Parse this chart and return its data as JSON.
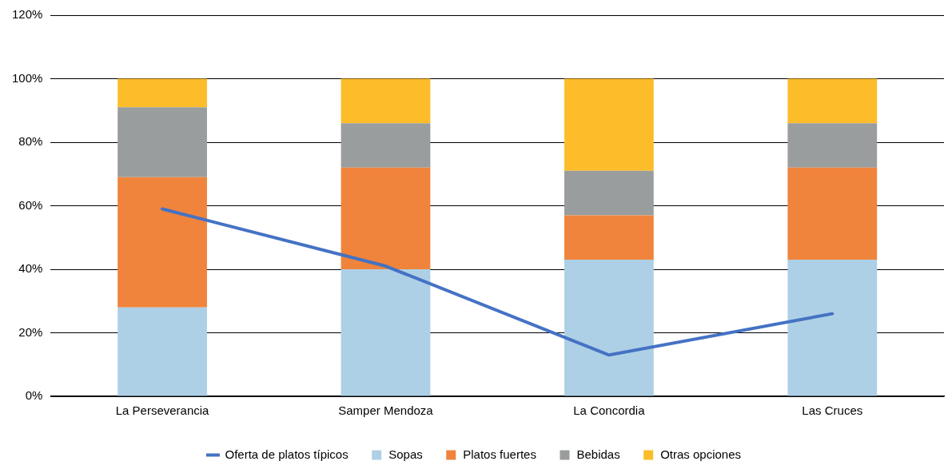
{
  "chart_data": {
    "type": "bar",
    "stacked": true,
    "categories": [
      "La Perseverancia",
      "Samper Mendoza",
      "La Concordia",
      "Las Cruces"
    ],
    "series": [
      {
        "name": "Sopas",
        "color": "#aed0e6",
        "values": [
          28,
          40,
          43,
          43
        ]
      },
      {
        "name": "Platos fuertes",
        "color": "#f0843c",
        "values": [
          41,
          32,
          14,
          29
        ]
      },
      {
        "name": "Bebidas",
        "color": "#9a9d9d",
        "values": [
          22,
          14,
          14,
          14
        ]
      },
      {
        "name": "Otras opciones",
        "color": "#fdbd2a",
        "values": [
          9,
          14,
          29,
          14
        ]
      },
      {
        "name": "Oferta de platos típicos",
        "type": "line",
        "color": "#4472c4",
        "values": [
          59,
          41,
          13,
          26
        ]
      }
    ],
    "ylim": [
      0,
      120
    ],
    "yticks": [
      {
        "value": 0,
        "label": "0%"
      },
      {
        "value": 20,
        "label": "20%"
      },
      {
        "value": 40,
        "label": "40%"
      },
      {
        "value": 60,
        "label": "60%"
      },
      {
        "value": 80,
        "label": "80%"
      },
      {
        "value": 100,
        "label": "100%"
      },
      {
        "value": 120,
        "label": "120%"
      }
    ],
    "grid": "y",
    "legend": "bottom",
    "marker": "none",
    "line_style": "solid"
  }
}
